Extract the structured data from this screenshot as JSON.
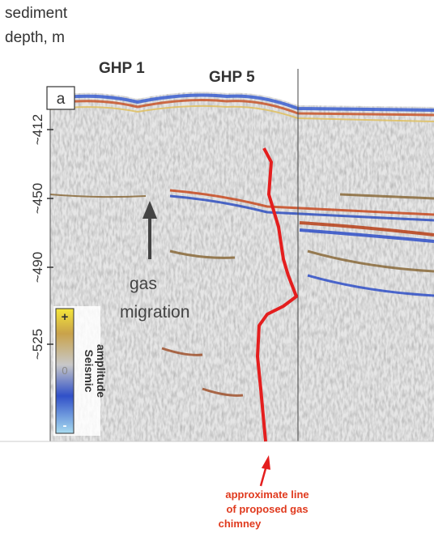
{
  "axis_title": [
    "sediment",
    "depth, m"
  ],
  "sites": [
    "GHP 1",
    "GHP 5"
  ],
  "panel_label": "a",
  "depth_ticks": [
    "~412",
    "~450",
    "~490",
    "~525"
  ],
  "annotation": [
    "gas",
    "migration"
  ],
  "colorbar": {
    "title": [
      "Seismic",
      "amplitude"
    ],
    "labels": [
      "+",
      "0",
      "-"
    ]
  },
  "caption": [
    "approximate line",
    "of proposed gas",
    "chimney"
  ]
}
